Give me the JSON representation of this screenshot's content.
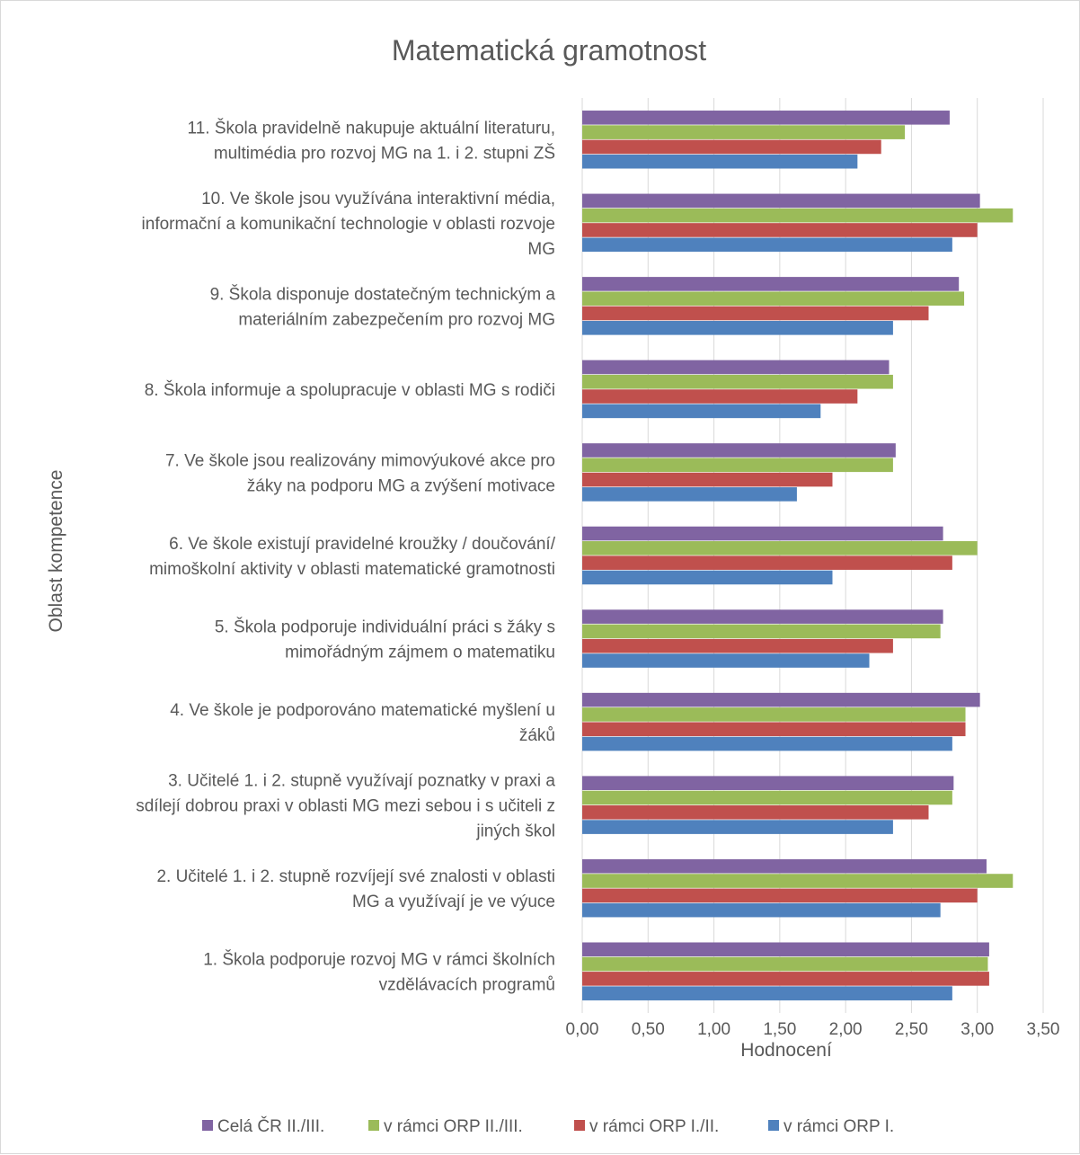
{
  "chart_data": {
    "type": "bar",
    "orientation": "horizontal",
    "title": "Matematická gramotnost",
    "xlabel": "Hodnocení",
    "ylabel": "Oblast kompetence",
    "xlim": [
      0,
      3.5
    ],
    "xticks": [
      0,
      0.5,
      1.0,
      1.5,
      2.0,
      2.5,
      3.0,
      3.5
    ],
    "xtick_labels": [
      "0,00",
      "0,50",
      "1,00",
      "1,50",
      "2,00",
      "2,50",
      "3,00",
      "3,50"
    ],
    "grid": "vertical",
    "legend_position": "bottom",
    "categories": [
      {
        "lines": [
          "1. Škola podporuje rozvoj MG v rámci školních",
          "vzdělávacích programů"
        ]
      },
      {
        "lines": [
          "2. Učitelé 1. i 2. stupně rozvíjejí své znalosti v oblasti",
          "MG a využívají je ve výuce"
        ]
      },
      {
        "lines": [
          "3. Učitelé 1. i 2. stupně využívají poznatky v praxi a",
          "sdílejí dobrou praxi v oblasti MG mezi sebou i s učiteli z",
          "jiných škol"
        ]
      },
      {
        "lines": [
          "4. Ve škole je podporováno matematické myšlení u",
          "žáků"
        ]
      },
      {
        "lines": [
          "5. Škola podporuje individuální práci s žáky s",
          "mimořádným zájmem o matematiku"
        ]
      },
      {
        "lines": [
          "6. Ve škole existují pravidelné kroužky / doučování/",
          "mimoškolní aktivity v oblasti matematické gramotnosti"
        ]
      },
      {
        "lines": [
          "7. Ve škole jsou realizovány mimovýukové akce pro",
          "žáky na podporu MG a zvýšení motivace"
        ]
      },
      {
        "lines": [
          "8. Škola informuje a spolupracuje v oblasti MG s rodiči"
        ]
      },
      {
        "lines": [
          "9. Škola disponuje dostatečným technickým a",
          "materiálním zabezpečením pro rozvoj MG"
        ]
      },
      {
        "lines": [
          "10. Ve škole jsou využívána interaktivní média,",
          "informační a komunikační technologie v oblasti rozvoje",
          "MG"
        ]
      },
      {
        "lines": [
          "11. Škola pravidelně nakupuje aktuální literaturu,",
          "multimédia pro rozvoj MG na 1. i 2. stupni ZŠ"
        ]
      }
    ],
    "series": [
      {
        "name": "Celá ČR II./III.",
        "color": "#8064a2",
        "values": [
          3.09,
          3.07,
          2.82,
          3.02,
          2.74,
          2.74,
          2.38,
          2.33,
          2.86,
          3.02,
          2.79
        ]
      },
      {
        "name": "v rámci ORP II./III.",
        "color": "#9bbb59",
        "values": [
          3.08,
          3.27,
          2.81,
          2.91,
          2.72,
          3.0,
          2.36,
          2.36,
          2.9,
          3.27,
          2.45
        ]
      },
      {
        "name": "v rámci ORP I./II.",
        "color": "#c0504d",
        "values": [
          3.09,
          3.0,
          2.63,
          2.91,
          2.36,
          2.81,
          1.9,
          2.09,
          2.63,
          3.0,
          2.27
        ]
      },
      {
        "name": "v rámci ORP I.",
        "color": "#4f81bd",
        "values": [
          2.81,
          2.72,
          2.36,
          2.81,
          2.18,
          1.9,
          1.63,
          1.81,
          2.36,
          2.81,
          2.09
        ]
      }
    ]
  }
}
